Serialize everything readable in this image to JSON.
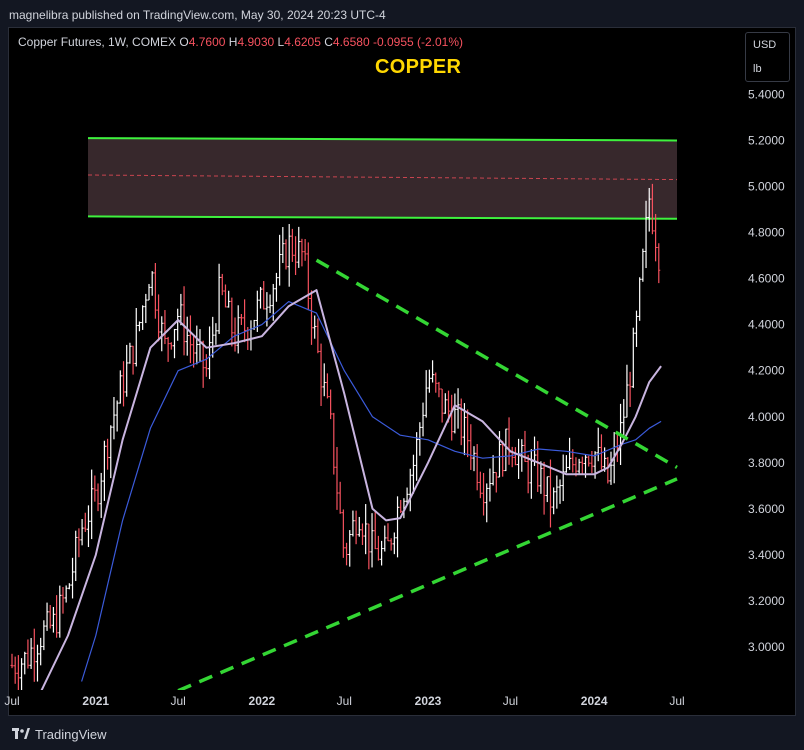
{
  "header": {
    "published": "magnelibra published on TradingView.com, May 30, 2024 20:23 UTC-4"
  },
  "legend": {
    "symbol": "Copper Futures, 1W, COMEX",
    "open_k": "O",
    "open": "4.7600",
    "high_k": "H",
    "high": "4.9030",
    "low_k": "L",
    "low": "4.6205",
    "close_k": "C",
    "close": "4.6580",
    "change": "-0.0955 (-2.01%)"
  },
  "chart_title": "COPPER",
  "currency": {
    "currency": "USD",
    "unit": "lb"
  },
  "footer": {
    "brand": "TradingView"
  },
  "chart_data": {
    "type": "line",
    "title": "COPPER",
    "ylim": [
      2.8,
      5.6
    ],
    "y_ticks": [
      "5.4000",
      "5.2000",
      "5.0000",
      "4.8000",
      "4.6000",
      "4.4000",
      "4.2000",
      "4.0000",
      "3.8000",
      "3.6000",
      "3.4000",
      "3.2000",
      "3.0000"
    ],
    "y_tick_values": [
      5.4,
      5.2,
      5.0,
      4.8,
      4.6,
      4.4,
      4.2,
      4.0,
      3.8,
      3.6,
      3.4,
      3.2,
      3.0
    ],
    "x_ticks": [
      "Jul",
      "2021",
      "Jul",
      "2022",
      "Jul",
      "2023",
      "Jul",
      "2024",
      "Jul"
    ],
    "x_tick_dates": [
      "2020-07-01",
      "2021-01-01",
      "2021-07-01",
      "2022-01-01",
      "2022-07-01",
      "2023-01-01",
      "2023-07-01",
      "2024-01-01",
      "2024-07-01"
    ],
    "price_series": {
      "name": "",
      "dates": [
        "2020-07-01",
        "2020-08-01",
        "2020-09-01",
        "2020-10-01",
        "2020-11-01",
        "2020-12-01",
        "2021-01-01",
        "2021-02-01",
        "2021-03-01",
        "2021-04-01",
        "2021-05-01",
        "2021-06-01",
        "2021-07-01",
        "2021-08-01",
        "2021-09-01",
        "2021-10-01",
        "2021-11-01",
        "2021-12-01",
        "2022-01-01",
        "2022-02-01",
        "2022-03-01",
        "2022-04-01",
        "2022-05-01",
        "2022-06-01",
        "2022-07-01",
        "2022-08-01",
        "2022-09-01",
        "2022-10-01",
        "2022-11-01",
        "2022-12-01",
        "2023-01-01",
        "2023-02-01",
        "2023-03-01",
        "2023-04-01",
        "2023-05-01",
        "2023-06-01",
        "2023-07-01",
        "2023-08-01",
        "2023-09-01",
        "2023-10-01",
        "2023-11-01",
        "2023-12-01",
        "2024-01-01",
        "2024-02-01",
        "2024-03-01",
        "2024-04-01",
        "2024-05-01",
        "2024-05-27"
      ],
      "values": [
        2.92,
        2.95,
        3.05,
        3.1,
        3.25,
        3.52,
        3.65,
        3.95,
        4.15,
        4.35,
        4.65,
        4.3,
        4.45,
        4.3,
        4.2,
        4.55,
        4.35,
        4.4,
        4.5,
        4.6,
        4.75,
        4.7,
        4.3,
        3.95,
        3.4,
        3.6,
        3.42,
        3.4,
        3.65,
        3.8,
        4.18,
        4.05,
        4.0,
        3.9,
        3.7,
        3.8,
        3.9,
        3.78,
        3.75,
        3.62,
        3.75,
        3.85,
        3.85,
        3.72,
        3.95,
        4.35,
        4.95,
        4.66
      ]
    },
    "ma_fast": {
      "name": "",
      "dates": [
        "2020-09-01",
        "2020-11-01",
        "2021-01-01",
        "2021-03-01",
        "2021-05-01",
        "2021-07-01",
        "2021-09-01",
        "2021-11-01",
        "2022-01-01",
        "2022-03-01",
        "2022-05-01",
        "2022-07-01",
        "2022-08-01",
        "2022-09-01",
        "2022-10-01",
        "2022-11-01",
        "2023-01-01",
        "2023-03-01",
        "2023-05-01",
        "2023-07-01",
        "2023-09-01",
        "2023-11-01",
        "2024-01-01",
        "2024-02-01",
        "2024-03-01",
        "2024-04-01",
        "2024-05-01",
        "2024-05-27"
      ],
      "values": [
        2.8,
        3.05,
        3.4,
        3.9,
        4.3,
        4.42,
        4.3,
        4.32,
        4.35,
        4.48,
        4.55,
        4.1,
        3.85,
        3.6,
        3.55,
        3.56,
        3.8,
        4.05,
        3.98,
        3.85,
        3.8,
        3.75,
        3.75,
        3.78,
        3.88,
        4.0,
        4.15,
        4.22
      ]
    },
    "ma_slow": {
      "name": "",
      "dates": [
        "2020-12-01",
        "2021-01-01",
        "2021-03-01",
        "2021-05-01",
        "2021-07-01",
        "2021-09-01",
        "2021-11-01",
        "2022-01-01",
        "2022-03-01",
        "2022-05-01",
        "2022-07-01",
        "2022-09-01",
        "2022-11-01",
        "2023-01-01",
        "2023-03-01",
        "2023-05-01",
        "2023-07-01",
        "2023-09-01",
        "2023-11-01",
        "2024-01-01",
        "2024-03-01",
        "2024-04-01",
        "2024-05-01",
        "2024-05-27"
      ],
      "values": [
        2.85,
        3.05,
        3.55,
        3.95,
        4.2,
        4.25,
        4.35,
        4.4,
        4.5,
        4.45,
        4.2,
        4.0,
        3.92,
        3.9,
        3.85,
        3.82,
        3.83,
        3.86,
        3.85,
        3.83,
        3.88,
        3.9,
        3.95,
        3.98
      ]
    },
    "annotations": {
      "resistance_zone": {
        "start": "2020-12-15",
        "end": "2024-07-01",
        "upper": [
          5.21,
          5.2
        ],
        "lower": [
          4.87,
          4.86
        ],
        "mid": [
          5.05,
          5.03
        ]
      },
      "upper_trendline": {
        "start": "2022-05-01",
        "end": "2024-07-01",
        "values": [
          4.68,
          3.78
        ]
      },
      "lower_trendline": {
        "start": "2021-07-01",
        "end": "2024-07-01",
        "values": [
          2.81,
          3.73
        ]
      }
    }
  }
}
